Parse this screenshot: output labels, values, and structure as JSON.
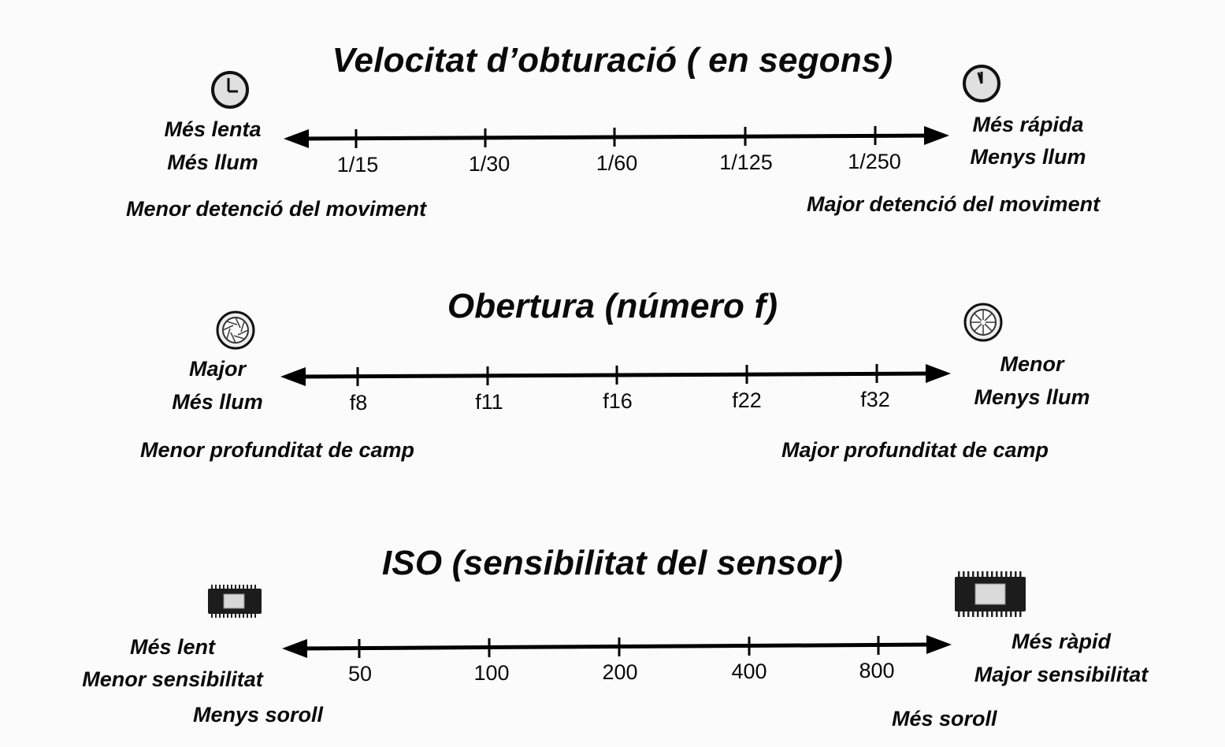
{
  "sections": [
    {
      "title": "Velocitat d’obturació ( en segons)",
      "left_icon": "clock-icon",
      "right_icon": "clock-icon",
      "left_labels": [
        "Més lenta",
        "Més llum"
      ],
      "left_note": "Menor detenció del moviment",
      "right_labels": [
        "Més rápida",
        "Menys llum"
      ],
      "right_note": "Major detenció del moviment",
      "ticks": [
        "1/15",
        "1/30",
        "1/60",
        "1/125",
        "1/250"
      ]
    },
    {
      "title": "Obertura (número f)",
      "left_icon": "aperture-icon",
      "right_icon": "aperture-icon",
      "left_labels": [
        "Major",
        "Més llum"
      ],
      "left_note": "Menor profunditat de camp",
      "right_labels": [
        "Menor",
        "Menys llum"
      ],
      "right_note": "Major profunditat de camp",
      "ticks": [
        "f8",
        "f11",
        "f16",
        "f22",
        "f32"
      ]
    },
    {
      "title": "ISO (sensibilitat del sensor)",
      "left_icon": "sensor-chip-icon",
      "right_icon": "sensor-chip-icon",
      "left_labels": [
        "Més lent",
        "Menor sensibilitat"
      ],
      "left_note": "Menys soroll",
      "right_labels": [
        "Més ràpid",
        "Major sensibilitat"
      ],
      "right_note": "Més soroll",
      "ticks": [
        "50",
        "100",
        "200",
        "400",
        "800"
      ]
    }
  ]
}
